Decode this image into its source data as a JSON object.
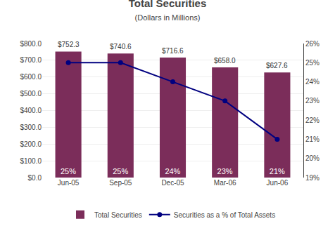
{
  "chart_data": {
    "type": "bar",
    "title": "Total Securities",
    "subtitle": "(Dollars in Millions)",
    "categories": [
      "Jun-05",
      "Sep-05",
      "Dec-05",
      "Mar-06",
      "Jun-06"
    ],
    "series": [
      {
        "name": "Total Securities",
        "type": "bar",
        "color": "#7B2D5A",
        "values": [
          752.3,
          740.6,
          716.6,
          658.0,
          627.6
        ],
        "value_labels": [
          "$752.3",
          "$740.6",
          "$716.6",
          "$658.0",
          "$627.6"
        ],
        "data_labels": true
      },
      {
        "name": "Securities as a % of Total Assets",
        "type": "line",
        "axis": "y2",
        "color": "#000080",
        "marker": "circle",
        "values": [
          25,
          25,
          24,
          23,
          21
        ],
        "value_labels": [
          "25%",
          "25%",
          "24%",
          "23%",
          "21%"
        ],
        "data_labels": true
      }
    ],
    "ylim": [
      0,
      800
    ],
    "yticks": [
      {
        "value": 0,
        "label": "$0.0"
      },
      {
        "value": 100,
        "label": "$100.0"
      },
      {
        "value": 200,
        "label": "$200.0"
      },
      {
        "value": 300,
        "label": "$300.0"
      },
      {
        "value": 400,
        "label": "$400.0"
      },
      {
        "value": 500,
        "label": "$500.0"
      },
      {
        "value": 600,
        "label": "$600.0"
      },
      {
        "value": 700,
        "label": "$700.0"
      },
      {
        "value": 800,
        "label": "$800.0"
      }
    ],
    "y2lim": [
      19,
      26
    ],
    "y2ticks": [
      {
        "value": 19,
        "label": "19%"
      },
      {
        "value": 20,
        "label": "20%"
      },
      {
        "value": 21,
        "label": "21%"
      },
      {
        "value": 22,
        "label": "22%"
      },
      {
        "value": 23,
        "label": "23%"
      },
      {
        "value": 24,
        "label": "24%"
      },
      {
        "value": 25,
        "label": "25%"
      },
      {
        "value": 26,
        "label": "26%"
      }
    ],
    "grid": true,
    "legend": "bottom"
  }
}
